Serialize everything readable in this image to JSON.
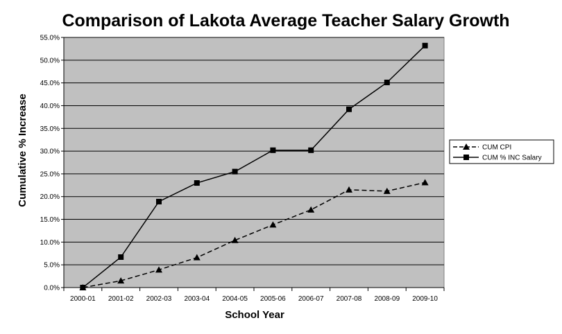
{
  "chart_data": {
    "type": "line",
    "title": "Comparison of Lakota Average Teacher Salary Growth",
    "xlabel": "School Year",
    "ylabel": "Cumulative % Increase",
    "categories": [
      "2000-01",
      "2001-02",
      "2002-03",
      "2003-04",
      "2004-05",
      "2005-06",
      "2006-07",
      "2007-08",
      "2008-09",
      "2009-10"
    ],
    "ylim": [
      0,
      55
    ],
    "yticks": [
      0,
      5,
      10,
      15,
      20,
      25,
      30,
      35,
      40,
      45,
      50,
      55
    ],
    "ytick_labels": [
      "0.0%",
      "5.0%",
      "10.0%",
      "15.0%",
      "20.0%",
      "25.0%",
      "30.0%",
      "35.0%",
      "40.0%",
      "45.0%",
      "50.0%",
      "55.0%"
    ],
    "grid": true,
    "legend_position": "right",
    "series": [
      {
        "name": "CUM CPI",
        "values": [
          0.0,
          1.5,
          3.9,
          6.6,
          10.4,
          13.8,
          17.1,
          21.5,
          21.2,
          23.1
        ],
        "marker": "triangle",
        "line_style": "dashed",
        "color": "#000000"
      },
      {
        "name": "CUM % INC Salary",
        "values": [
          0.0,
          6.7,
          18.9,
          23.0,
          25.5,
          30.2,
          30.2,
          39.2,
          45.1,
          53.2
        ],
        "marker": "square",
        "line_style": "solid",
        "color": "#000000"
      }
    ],
    "colors": {
      "plot_background": "#c0c0c0",
      "grid": "#000000",
      "line": "#000000"
    }
  }
}
